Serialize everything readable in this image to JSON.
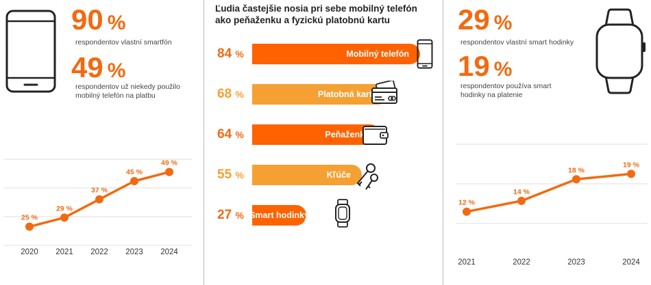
{
  "left": {
    "stat1": {
      "value": "90",
      "unit": "%",
      "text": "respondentov vlastní smartfón"
    },
    "stat2": {
      "value": "49",
      "unit": "%",
      "text_line1": "respondentov už niekedy použilo",
      "text_line2": "mobilný telefón na platbu"
    },
    "icon": "smartphone-icon"
  },
  "middle": {
    "title_line1": "Ľudia častejšie nosia pri sebe mobilný telefón",
    "title_line2": "ako peňaženku a fyzickú platobnú kartu",
    "items": [
      {
        "pct": "84",
        "unit": "%",
        "label": "Mobilný telefón",
        "value": 84,
        "color": "#ff6200",
        "icon": "smartphone-icon"
      },
      {
        "pct": "68",
        "unit": "%",
        "label": "Platobná karta",
        "value": 68,
        "color": "#f5a033",
        "icon": "payment-card-icon"
      },
      {
        "pct": "64",
        "unit": "%",
        "label": "Peňaženka",
        "value": 64,
        "color": "#ff6200",
        "icon": "wallet-icon"
      },
      {
        "pct": "55",
        "unit": "%",
        "label": "Kľúče",
        "value": 55,
        "color": "#f5a033",
        "icon": "keys-icon"
      },
      {
        "pct": "27",
        "unit": "%",
        "label": "Smart hodinky",
        "value": 27,
        "color": "#ff6200",
        "icon": "smartwatch-icon"
      }
    ]
  },
  "right": {
    "stat1": {
      "value": "29",
      "unit": "%",
      "text": "respondentov vlastní smart hodinky"
    },
    "stat2": {
      "value": "19",
      "unit": "%",
      "text_line1": "respondentov používa smart",
      "text_line2": "hodinky na platenie"
    },
    "icon": "smartwatch-icon"
  },
  "chart_data": [
    {
      "type": "line",
      "x": [
        "2020",
        "2021",
        "2022",
        "2023",
        "2024"
      ],
      "values": [
        25,
        29,
        37,
        45,
        49
      ],
      "labels": [
        "25 %",
        "29 %",
        "37 %",
        "45 %",
        "49 %"
      ],
      "ylim": [
        15,
        60
      ],
      "grid": true,
      "color": "#f26a10"
    },
    {
      "type": "line",
      "x": [
        "2021",
        "2022",
        "2023",
        "2024"
      ],
      "values": [
        12,
        14,
        18,
        19
      ],
      "labels": [
        "12 %",
        "14 %",
        "18 %",
        "19 %"
      ],
      "ylim": [
        5,
        25
      ],
      "grid": true,
      "color": "#f26a10"
    }
  ]
}
